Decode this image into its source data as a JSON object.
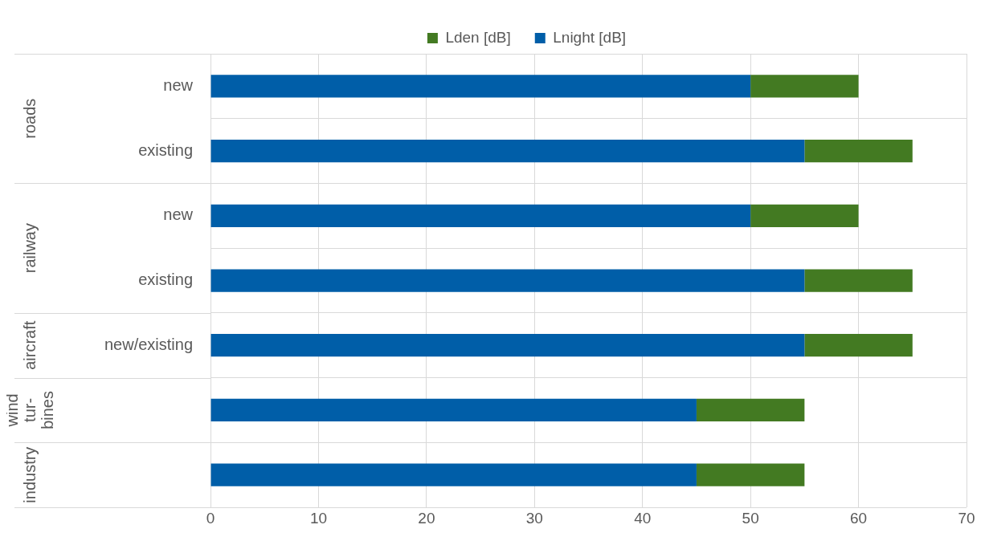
{
  "chart_data": {
    "type": "bar",
    "orientation": "horizontal",
    "stacked": true,
    "categories": [
      "new",
      "existing",
      "new",
      "existing",
      "new/existing",
      null,
      null
    ],
    "series": [
      {
        "name": "Lnight [dB]",
        "color": "#005ea8",
        "values": [
          50,
          55,
          50,
          55,
          55,
          45,
          45
        ]
      },
      {
        "name": "Lden [dB]",
        "color": "#437a22",
        "values": [
          10,
          10,
          10,
          10,
          10,
          10,
          10
        ]
      }
    ],
    "xlim": [
      0,
      70
    ],
    "xticks": [
      0,
      10,
      20,
      30,
      40,
      50,
      60,
      70
    ],
    "grid": true,
    "legend": "top",
    "annotations": [
      "roads",
      "railway",
      "aircraft",
      "wind tur-bines",
      "industry"
    ]
  }
}
